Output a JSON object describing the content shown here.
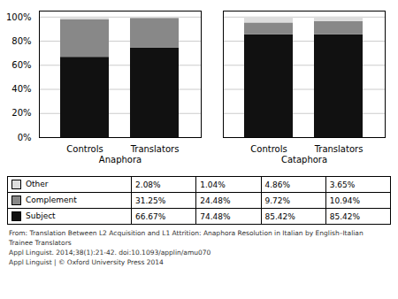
{
  "chart_data": {
    "type": "bar",
    "stacked": true,
    "categories": [
      "Controls",
      "Translators",
      "Controls",
      "Translators"
    ],
    "annotations": [
      "Anaphora",
      "Cataphora"
    ],
    "series": [
      {
        "name": "Subject",
        "color": "#111111",
        "values": [
          66.67,
          74.48,
          85.42,
          85.42
        ],
        "value_labels": [
          "66.67%",
          "74.48%",
          "85.42%",
          "85.42%"
        ]
      },
      {
        "name": "Complement",
        "color": "#888888",
        "values": [
          31.25,
          24.48,
          9.72,
          10.94
        ],
        "value_labels": [
          "31.25%",
          "24.48%",
          "9.72%",
          "10.94%"
        ]
      },
      {
        "name": "Other",
        "color": "#dddddd",
        "values": [
          2.08,
          1.04,
          4.86,
          3.65
        ],
        "value_labels": [
          "2.08%",
          "1.04%",
          "4.86%",
          "3.65%"
        ]
      }
    ],
    "ylim": [
      0,
      105
    ],
    "yticks": [
      {
        "value": 0,
        "label": "0%"
      },
      {
        "value": 20,
        "label": "20%"
      },
      {
        "value": 40,
        "label": "40%"
      },
      {
        "value": 60,
        "label": "60%"
      },
      {
        "value": 80,
        "label": "80%"
      },
      {
        "value": 100,
        "label": "100%"
      }
    ],
    "grid": true,
    "caption": [
      "From: Translation Between L2 Acquisition and L1 Attrition: Anaphora Resolution in Italian by English–Italian",
      "Trainee Translators",
      "Appl Linguist. 2014;38(1):21-42. doi:10.1093/applin/amu070",
      "Appl Linguist | © Oxford University Press 2014"
    ]
  }
}
